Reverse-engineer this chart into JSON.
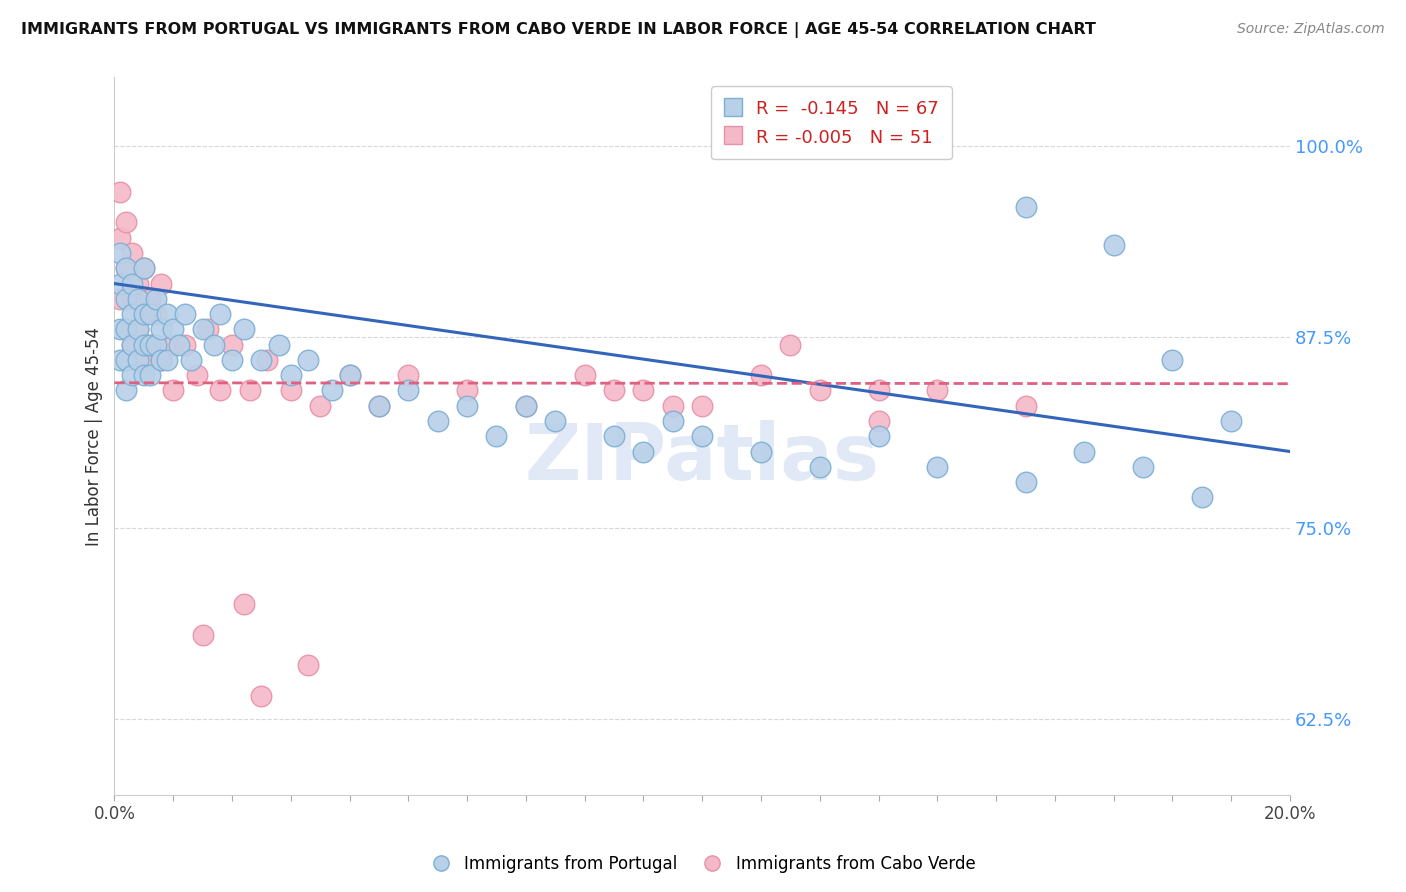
{
  "title": "IMMIGRANTS FROM PORTUGAL VS IMMIGRANTS FROM CABO VERDE IN LABOR FORCE | AGE 45-54 CORRELATION CHART",
  "source": "Source: ZipAtlas.com",
  "ylabel": "In Labor Force | Age 45-54",
  "xlim": [
    0.0,
    0.2
  ],
  "ylim": [
    0.575,
    1.045
  ],
  "yticks": [
    0.625,
    0.75,
    0.875,
    1.0
  ],
  "ytick_labels": [
    "62.5%",
    "75.0%",
    "87.5%",
    "100.0%"
  ],
  "legend_r1": "R =  -0.145",
  "legend_n1": "N = 67",
  "legend_r2": "R = -0.005",
  "legend_n2": "N = 51",
  "blue_color": "#b8d0e8",
  "blue_edge": "#7bafd4",
  "pink_color": "#f4b8c8",
  "pink_edge": "#e890a8",
  "blue_line_color": "#3366bb",
  "pink_line_color": "#e06080",
  "grid_color": "#d8d8d8",
  "watermark_color": "#c8d8ee",
  "portugal_x": [
    0.001,
    0.001,
    0.001,
    0.001,
    0.002,
    0.002,
    0.002,
    0.002,
    0.002,
    0.003,
    0.003,
    0.003,
    0.003,
    0.004,
    0.004,
    0.004,
    0.005,
    0.005,
    0.005,
    0.005,
    0.006,
    0.006,
    0.006,
    0.007,
    0.007,
    0.008,
    0.008,
    0.009,
    0.009,
    0.01,
    0.011,
    0.012,
    0.013,
    0.015,
    0.017,
    0.018,
    0.02,
    0.022,
    0.025,
    0.028,
    0.03,
    0.033,
    0.037,
    0.04,
    0.045,
    0.05,
    0.055,
    0.06,
    0.065,
    0.07,
    0.075,
    0.085,
    0.09,
    0.095,
    0.1,
    0.11,
    0.12,
    0.13,
    0.14,
    0.155,
    0.165,
    0.175,
    0.185,
    0.19,
    0.155,
    0.17,
    0.18
  ],
  "portugal_y": [
    0.93,
    0.91,
    0.88,
    0.86,
    0.92,
    0.9,
    0.88,
    0.86,
    0.84,
    0.91,
    0.89,
    0.87,
    0.85,
    0.9,
    0.88,
    0.86,
    0.92,
    0.89,
    0.87,
    0.85,
    0.89,
    0.87,
    0.85,
    0.9,
    0.87,
    0.88,
    0.86,
    0.89,
    0.86,
    0.88,
    0.87,
    0.89,
    0.86,
    0.88,
    0.87,
    0.89,
    0.86,
    0.88,
    0.86,
    0.87,
    0.85,
    0.86,
    0.84,
    0.85,
    0.83,
    0.84,
    0.82,
    0.83,
    0.81,
    0.83,
    0.82,
    0.81,
    0.8,
    0.82,
    0.81,
    0.8,
    0.79,
    0.81,
    0.79,
    0.78,
    0.8,
    0.79,
    0.77,
    0.82,
    0.96,
    0.935,
    0.86
  ],
  "caboverde_x": [
    0.001,
    0.001,
    0.001,
    0.002,
    0.002,
    0.002,
    0.003,
    0.003,
    0.003,
    0.004,
    0.004,
    0.005,
    0.005,
    0.005,
    0.006,
    0.006,
    0.007,
    0.008,
    0.008,
    0.01,
    0.01,
    0.012,
    0.014,
    0.016,
    0.018,
    0.02,
    0.023,
    0.026,
    0.03,
    0.035,
    0.04,
    0.045,
    0.05,
    0.06,
    0.07,
    0.08,
    0.09,
    0.1,
    0.11,
    0.12,
    0.13,
    0.14,
    0.155,
    0.115,
    0.13,
    0.085,
    0.095,
    0.025,
    0.033,
    0.015,
    0.022
  ],
  "caboverde_y": [
    0.97,
    0.94,
    0.9,
    0.95,
    0.92,
    0.88,
    0.93,
    0.9,
    0.87,
    0.91,
    0.88,
    0.92,
    0.89,
    0.86,
    0.9,
    0.87,
    0.89,
    0.86,
    0.91,
    0.87,
    0.84,
    0.87,
    0.85,
    0.88,
    0.84,
    0.87,
    0.84,
    0.86,
    0.84,
    0.83,
    0.85,
    0.83,
    0.85,
    0.84,
    0.83,
    0.85,
    0.84,
    0.83,
    0.85,
    0.84,
    0.82,
    0.84,
    0.83,
    0.87,
    0.84,
    0.84,
    0.83,
    0.64,
    0.66,
    0.68,
    0.7
  ]
}
